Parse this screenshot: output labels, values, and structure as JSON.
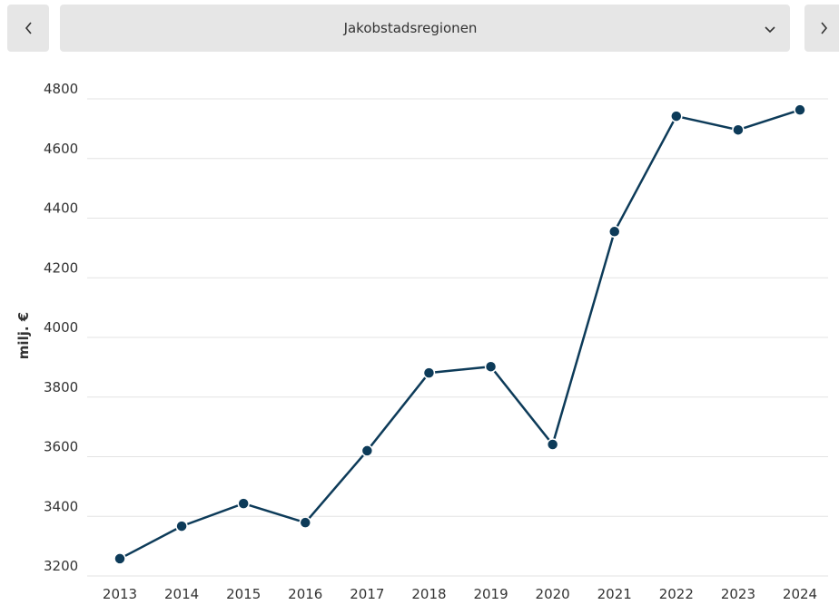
{
  "header": {
    "selector": "Jakobstadsregionen"
  },
  "chart_data": {
    "type": "line",
    "ylabel": "milj. €",
    "categories": [
      "2013",
      "2014",
      "2015",
      "2016",
      "2017",
      "2018",
      "2019",
      "2020",
      "2021",
      "2022",
      "2023",
      "2024"
    ],
    "series": [
      {
        "name": "Jakobstadsregionen",
        "color": "#0d3b59",
        "values": [
          3258,
          3367,
          3443,
          3379,
          3620,
          3881,
          3902,
          3641,
          4355,
          4742,
          4696,
          4763
        ]
      }
    ],
    "ylim": [
      3200,
      4800
    ],
    "yticks": [
      3200,
      3400,
      3600,
      3800,
      4000,
      4200,
      4400,
      4600,
      4800
    ],
    "grid": true
  }
}
